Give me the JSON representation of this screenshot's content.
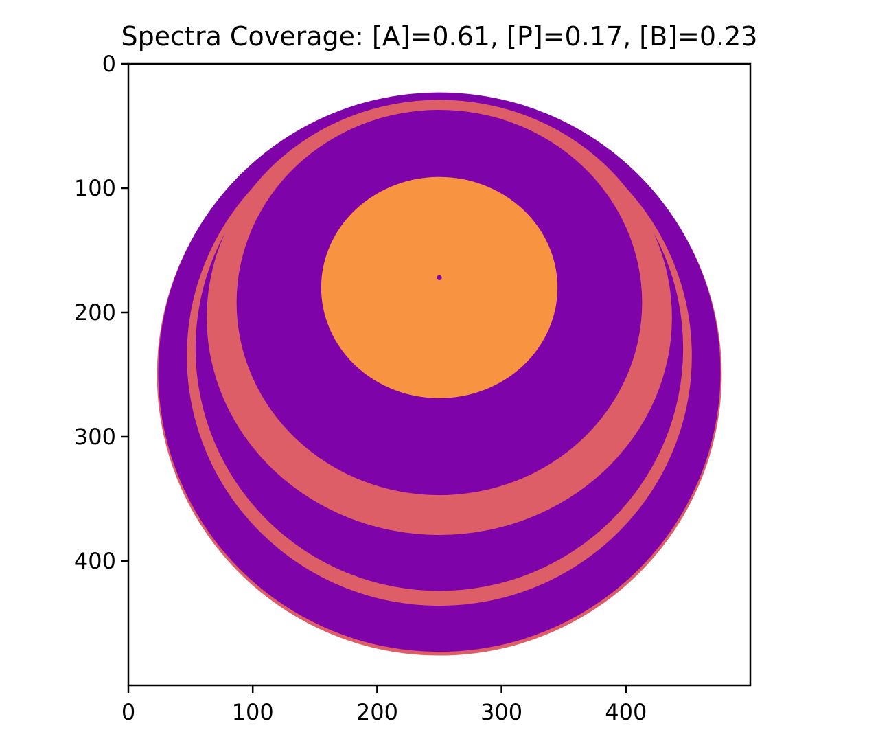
{
  "chart_data": {
    "type": "heatmap",
    "title": "Spectra Coverage: [A]=0.61, [P]=0.17, [B]=0.23",
    "xlabel": "",
    "ylabel": "",
    "xlim": [
      0,
      500
    ],
    "ylim": [
      500,
      0
    ],
    "x_ticks": [
      {
        "value": 0,
        "label": "0"
      },
      {
        "value": 100,
        "label": "100"
      },
      {
        "value": 200,
        "label": "200"
      },
      {
        "value": 300,
        "label": "300"
      },
      {
        "value": 400,
        "label": "400"
      }
    ],
    "y_ticks": [
      {
        "value": 0,
        "label": "0"
      },
      {
        "value": 100,
        "label": "100"
      },
      {
        "value": 200,
        "label": "200"
      },
      {
        "value": 300,
        "label": "300"
      },
      {
        "value": 400,
        "label": "400"
      }
    ],
    "grid": false,
    "colors": {
      "purple": "#7e03a8",
      "salmon": "#dd5e66",
      "orange": "#f89441"
    },
    "regions": [
      {
        "shape": "ellipse",
        "color": "salmon",
        "cx": 250,
        "cy": 250,
        "rx": 227,
        "ry": 226
      },
      {
        "shape": "ellipse",
        "color": "purple",
        "cx": 250,
        "cy": 248,
        "rx": 226,
        "ry": 225
      },
      {
        "shape": "ellipse",
        "color": "salmon",
        "cx": 250,
        "cy": 235,
        "rx": 203,
        "ry": 201
      },
      {
        "shape": "ellipse",
        "color": "purple",
        "cx": 250,
        "cy": 229,
        "rx": 196,
        "ry": 195
      },
      {
        "shape": "ellipse",
        "color": "salmon",
        "cx": 250,
        "cy": 204,
        "rx": 187,
        "ry": 175
      },
      {
        "shape": "ellipse",
        "color": "purple",
        "cx": 250,
        "cy": 192,
        "rx": 163,
        "ry": 155
      },
      {
        "shape": "ellipse",
        "color": "orange",
        "cx": 250,
        "cy": 180,
        "rx": 95,
        "ry": 89
      },
      {
        "shape": "ellipse",
        "color": "purple",
        "cx": 250,
        "cy": 172,
        "rx": 2,
        "ry": 2
      }
    ]
  }
}
